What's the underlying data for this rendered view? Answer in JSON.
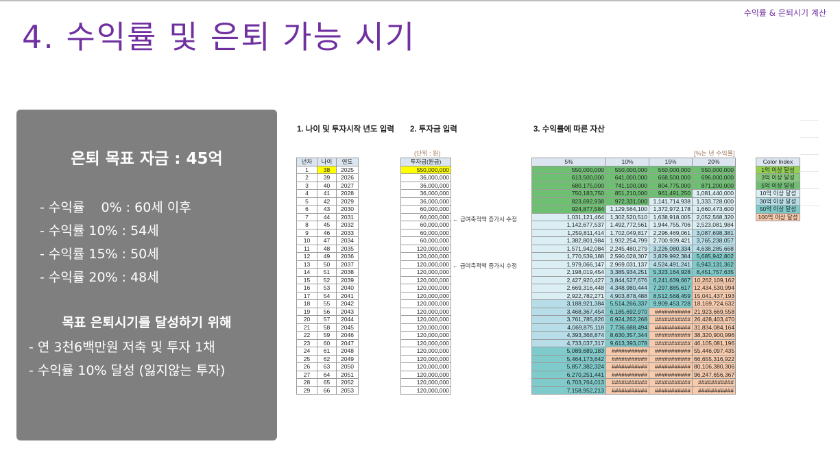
{
  "slide": {
    "corner_label": "수익률 & 은퇴시기 계산",
    "title": "4. 수익률 및 은퇴 가능 시기"
  },
  "panel": {
    "goal": "은퇴 목표 자금 : 45억",
    "rates": [
      "- 수익률    0% : 60세 이후",
      "- 수익률 10% : 54세",
      "- 수익률 15% : 50세",
      "- 수익률 20% : 48세"
    ],
    "subtitle": "목표 은퇴시기를 달성하기 위해",
    "tips": [
      "- 연 3천6백만원 저축 및 투자 1채",
      "- 수익률 10% 달성 (잃지않는 투자)"
    ]
  },
  "sheet": {
    "section1": "1. 나이 및 투자시작 년도 입력",
    "section2": "2. 투자금 입력",
    "section3": "3. 수익률에 따른 자산",
    "unit_left": "(단위 : 원)",
    "unit_right": "[%는 년 수익률]",
    "note": "← 급여축적액 증가시 수정",
    "headers_left": [
      "년차",
      "나이",
      "연도"
    ],
    "header_invest": "투자금(원금)",
    "headers_rates": [
      "5%",
      "10%",
      "15%",
      "20%"
    ],
    "rows": [
      [
        "1",
        "38",
        "2025",
        "550,000,000",
        "550,000,000",
        "550,000,000",
        "550,000,000",
        "550,000,000"
      ],
      [
        "2",
        "39",
        "2026",
        "36,000,000",
        "613,500,000",
        "641,000,000",
        "668,500,000",
        "696,000,000"
      ],
      [
        "3",
        "40",
        "2027",
        "36,000,000",
        "680,175,000",
        "741,100,000",
        "804,775,000",
        "871,200,000"
      ],
      [
        "4",
        "41",
        "2028",
        "36,000,000",
        "750,183,750",
        "851,210,000",
        "961,491,250",
        "1,081,440,000"
      ],
      [
        "5",
        "42",
        "2029",
        "36,000,000",
        "823,692,938",
        "972,331,000",
        "1,141,714,938",
        "1,333,728,000"
      ],
      [
        "6",
        "43",
        "2030",
        "60,000,000",
        "924,877,584",
        "1,129,564,100",
        "1,372,972,178",
        "1,660,473,600"
      ],
      [
        "7",
        "44",
        "2031",
        "60,000,000",
        "1,031,121,464",
        "1,302,520,510",
        "1,638,918,005",
        "2,052,568,320"
      ],
      [
        "8",
        "45",
        "2032",
        "60,000,000",
        "1,142,677,537",
        "1,492,772,561",
        "1,944,755,706",
        "2,523,081,984"
      ],
      [
        "9",
        "46",
        "2033",
        "60,000,000",
        "1,259,811,414",
        "1,702,049,817",
        "2,296,469,061",
        "3,087,698,381"
      ],
      [
        "10",
        "47",
        "2034",
        "60,000,000",
        "1,382,801,984",
        "1,932,254,799",
        "2,700,939,421",
        "3,765,238,057"
      ],
      [
        "11",
        "48",
        "2035",
        "120,000,000",
        "1,571,942,084",
        "2,245,480,279",
        "3,226,080,334",
        "4,638,285,668"
      ],
      [
        "12",
        "49",
        "2036",
        "120,000,000",
        "1,770,539,188",
        "2,590,028,307",
        "3,829,992,384",
        "5,685,942,802"
      ],
      [
        "13",
        "50",
        "2037",
        "120,000,000",
        "1,979,066,147",
        "2,969,031,137",
        "4,524,491,241",
        "6,943,131,362"
      ],
      [
        "14",
        "51",
        "2038",
        "120,000,000",
        "2,198,019,454",
        "3,385,934,251",
        "5,323,164,928",
        "8,451,757,635"
      ],
      [
        "15",
        "52",
        "2039",
        "120,000,000",
        "2,427,920,427",
        "3,844,527,676",
        "6,241,639,667",
        "10,262,109,162"
      ],
      [
        "16",
        "53",
        "2040",
        "120,000,000",
        "2,669,316,448",
        "4,348,980,444",
        "7,297,885,617",
        "12,434,530,994"
      ],
      [
        "17",
        "54",
        "2041",
        "120,000,000",
        "2,922,782,271",
        "4,903,878,488",
        "8,512,568,459",
        "15,041,437,193"
      ],
      [
        "18",
        "55",
        "2042",
        "120,000,000",
        "3,188,921,384",
        "5,514,266,337",
        "9,909,453,728",
        "18,169,724,632"
      ],
      [
        "19",
        "56",
        "2043",
        "120,000,000",
        "3,468,367,454",
        "6,185,692,970",
        "###########",
        "21,923,669,558"
      ],
      [
        "20",
        "57",
        "2044",
        "120,000,000",
        "3,761,785,826",
        "6,924,262,268",
        "###########",
        "26,428,403,470"
      ],
      [
        "21",
        "58",
        "2045",
        "120,000,000",
        "4,069,875,118",
        "7,736,688,494",
        "###########",
        "31,834,084,164"
      ],
      [
        "22",
        "59",
        "2046",
        "120,000,000",
        "4,393,368,874",
        "8,630,357,344",
        "###########",
        "38,320,900,996"
      ],
      [
        "23",
        "60",
        "2047",
        "120,000,000",
        "4,733,037,317",
        "9,613,393,078",
        "###########",
        "46,105,081,196"
      ],
      [
        "24",
        "61",
        "2048",
        "120,000,000",
        "5,089,689,183",
        "###########",
        "###########",
        "55,446,097,435"
      ],
      [
        "25",
        "62",
        "2049",
        "120,000,000",
        "5,464,173,642",
        "###########",
        "###########",
        "66,655,316,922"
      ],
      [
        "26",
        "63",
        "2050",
        "120,000,000",
        "5,857,382,324",
        "###########",
        "###########",
        "80,106,380,306"
      ],
      [
        "27",
        "64",
        "2051",
        "120,000,000",
        "6,270,251,441",
        "###########",
        "###########",
        "96,247,656,367"
      ],
      [
        "28",
        "65",
        "2052",
        "120,000,000",
        "6,703,764,013",
        "###########",
        "###########",
        "###########"
      ],
      [
        "29",
        "66",
        "2053",
        "120,000,000",
        "7,158,952,213",
        "###########",
        "###########",
        "###########"
      ]
    ],
    "legend_header": "Color Index",
    "legend": [
      {
        "label": "1억 이상 달성",
        "color": "#92d050"
      },
      {
        "label": "3억 이상 달성",
        "color": "#86c97c"
      },
      {
        "label": "5억 이상 달성",
        "color": "#6fbf73"
      },
      {
        "label": "10억 이상 달성",
        "color": "#daeef3"
      },
      {
        "label": "30억 이상 달성",
        "color": "#b7dee8"
      },
      {
        "label": "50억 이상 달성",
        "color": "#7fcbcb"
      },
      {
        "label": "100억 이상 달성",
        "color": "#f8cbad"
      }
    ]
  }
}
